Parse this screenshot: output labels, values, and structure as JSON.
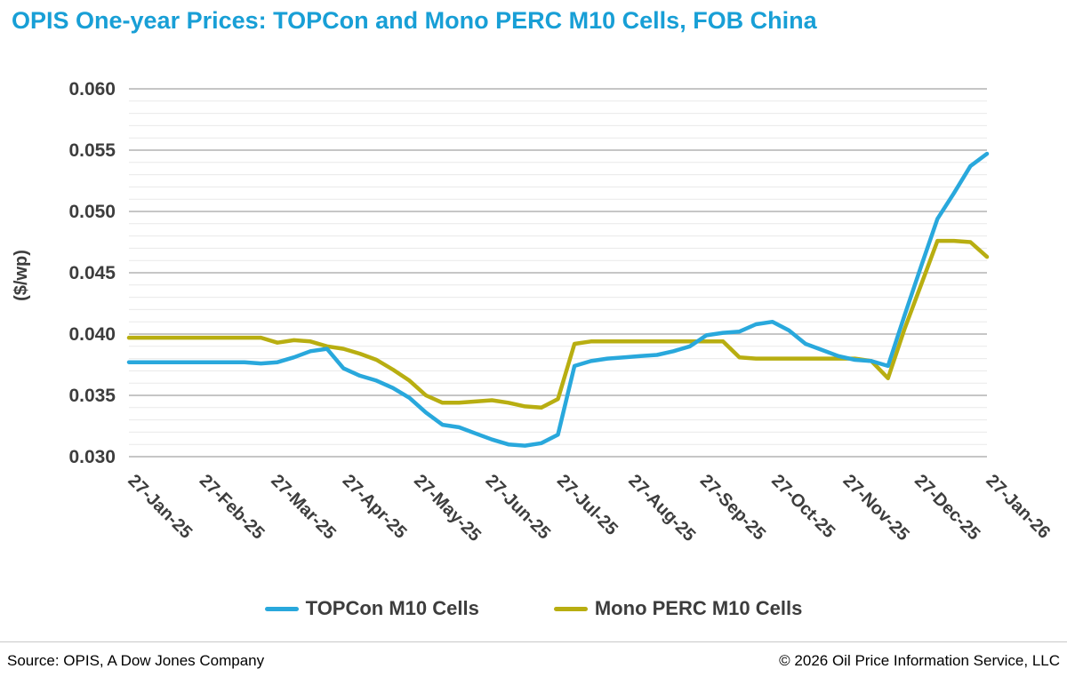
{
  "chart_data": {
    "type": "line",
    "title": "OPIS One-year Prices: TOPCon and Mono PERC M10 Cells, FOB China",
    "xlabel": "",
    "ylabel": "($/wp)",
    "ylim": [
      0.03,
      0.06
    ],
    "y_tick_step": 0.005,
    "y_minor_step": 0.001,
    "y_tick_labels": [
      "0.060",
      "0.055",
      "0.050",
      "0.045",
      "0.040",
      "0.035",
      "0.030"
    ],
    "x_tick_labels": [
      "27-Jan-25",
      "27-Feb-25",
      "27-Mar-25",
      "27-Apr-25",
      "27-May-25",
      "27-Jun-25",
      "27-Jul-25",
      "27-Aug-25",
      "27-Sep-25",
      "27-Oct-25",
      "27-Nov-25",
      "27-Dec-25",
      "27-Jan-26"
    ],
    "x_interval": "weekly",
    "grid": "horizontal",
    "legend_position": "bottom",
    "series": [
      {
        "name": "TOPCon M10 Cells",
        "color": "#29a8dc",
        "values": [
          0.0377,
          0.0377,
          0.0377,
          0.0377,
          0.0377,
          0.0377,
          0.0377,
          0.0377,
          0.0376,
          0.0377,
          0.0381,
          0.0386,
          0.0388,
          0.0372,
          0.0366,
          0.0362,
          0.0356,
          0.0348,
          0.0336,
          0.0326,
          0.0324,
          0.0319,
          0.0314,
          0.031,
          0.0309,
          0.0311,
          0.0318,
          0.0374,
          0.0378,
          0.038,
          0.0381,
          0.0382,
          0.0383,
          0.0386,
          0.039,
          0.0399,
          0.0401,
          0.0402,
          0.0408,
          0.041,
          0.0403,
          0.0392,
          0.0387,
          0.0382,
          0.0379,
          0.0378,
          0.0374,
          0.0415,
          0.0455,
          0.0494,
          0.0515,
          0.0537,
          0.0547
        ]
      },
      {
        "name": "Mono PERC M10 Cells",
        "color": "#b8ae11",
        "values": [
          0.0397,
          0.0397,
          0.0397,
          0.0397,
          0.0397,
          0.0397,
          0.0397,
          0.0397,
          0.0397,
          0.0393,
          0.0395,
          0.0394,
          0.039,
          0.0388,
          0.0384,
          0.0379,
          0.0371,
          0.0362,
          0.035,
          0.0344,
          0.0344,
          0.0345,
          0.0346,
          0.0344,
          0.0341,
          0.034,
          0.0347,
          0.0392,
          0.0394,
          0.0394,
          0.0394,
          0.0394,
          0.0394,
          0.0394,
          0.0394,
          0.0394,
          0.0394,
          0.0381,
          0.038,
          0.038,
          0.038,
          0.038,
          0.038,
          0.038,
          0.038,
          0.0378,
          0.0364,
          0.0404,
          0.044,
          0.0476,
          0.0476,
          0.0475,
          0.0463
        ]
      }
    ]
  },
  "footer": {
    "source": "Source: OPIS, A Dow Jones Company",
    "copyright": "© 2026 Oil Price Information Service, LLC"
  },
  "style": {
    "title_color": "#189fd6",
    "axis_text_color": "#3d3d3d",
    "major_grid_color": "#b3b3b3",
    "minor_grid_color": "#e9e9e9",
    "divider_color": "#c9c9c9"
  }
}
